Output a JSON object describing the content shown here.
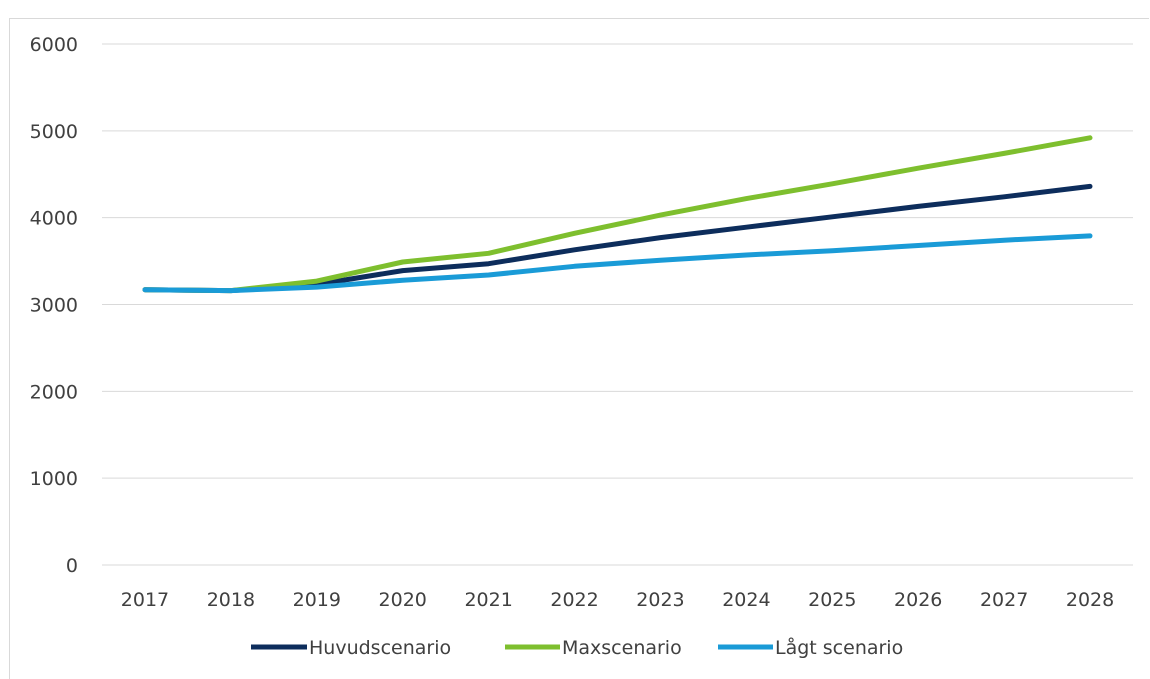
{
  "chart_data": {
    "type": "line",
    "title": "",
    "xlabel": "",
    "ylabel": "",
    "ylim": [
      0,
      6000
    ],
    "yticks": [
      0,
      1000,
      2000,
      3000,
      4000,
      5000,
      6000
    ],
    "grid": true,
    "legend_position": "bottom",
    "categories": [
      "2017",
      "2018",
      "2019",
      "2020",
      "2021",
      "2022",
      "2023",
      "2024",
      "2025",
      "2026",
      "2027",
      "2028"
    ],
    "series": [
      {
        "name": "Huvudscenario",
        "color": "#0d2d5c",
        "values": [
          3170,
          3160,
          3230,
          3390,
          3470,
          3630,
          3770,
          3890,
          4010,
          4130,
          4240,
          4360
        ]
      },
      {
        "name": "Maxscenario",
        "color": "#7ebf2e",
        "values": [
          3170,
          3160,
          3270,
          3490,
          3590,
          3820,
          4030,
          4220,
          4390,
          4570,
          4740,
          4920
        ]
      },
      {
        "name": "Lågt scenario",
        "color": "#1a9bd7",
        "values": [
          3170,
          3160,
          3200,
          3280,
          3340,
          3440,
          3510,
          3570,
          3620,
          3680,
          3740,
          3790
        ]
      }
    ]
  }
}
